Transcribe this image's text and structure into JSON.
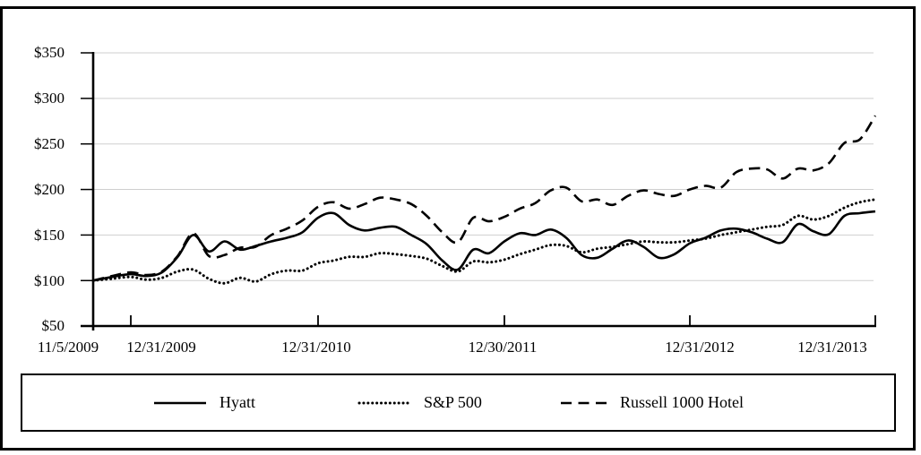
{
  "chart_data": {
    "type": "line",
    "title": "",
    "grid": "horizontal",
    "legend_position": "bottom-box",
    "line_color": "#000000",
    "grid_color": "#cfcfcf",
    "background_color": "#ffffff",
    "y_axis": {
      "min": 50,
      "max": 350,
      "step": 50,
      "labels": [
        "$350",
        "$300",
        "$250",
        "$200",
        "$150",
        "$100",
        "$50"
      ]
    },
    "x_axis": {
      "tick_labels": [
        "11/5/2009",
        "12/31/2009",
        "12/31/2010",
        "12/30/2011",
        "12/31/2012",
        "12/31/2013"
      ],
      "tick_point_indices": [
        0,
        2,
        14,
        26,
        38,
        50
      ],
      "n_points": 51,
      "point_frequency": "monthly from 11/5/2009 through 12/31/2013"
    },
    "series": [
      {
        "name": "Hyatt",
        "line_style": "solid",
        "values": [
          100,
          104,
          107,
          105,
          109,
          126,
          150,
          132,
          143,
          134,
          138,
          143,
          147,
          153,
          169,
          174,
          161,
          155,
          158,
          159,
          150,
          140,
          122,
          112,
          134,
          130,
          143,
          152,
          150,
          156,
          147,
          128,
          125,
          135,
          144,
          137,
          125,
          129,
          141,
          147,
          155,
          157,
          153,
          146,
          142,
          162,
          154,
          151,
          171,
          174,
          176
        ]
      },
      {
        "name": "S&P 500",
        "line_style": "dotted",
        "values": [
          100,
          102,
          104,
          101,
          103,
          110,
          112,
          102,
          97,
          103,
          99,
          107,
          111,
          111,
          119,
          122,
          126,
          126,
          130,
          129,
          127,
          124,
          116,
          110,
          121,
          120,
          123,
          129,
          134,
          139,
          138,
          131,
          135,
          137,
          140,
          143,
          142,
          142,
          144,
          146,
          150,
          153,
          156,
          159,
          161,
          171,
          167,
          171,
          180,
          186,
          189
        ]
      },
      {
        "name": "Russell 1000 Hotel",
        "line_style": "dashed",
        "values": [
          100,
          105,
          109,
          106,
          110,
          127,
          152,
          127,
          128,
          136,
          137,
          150,
          157,
          166,
          181,
          186,
          179,
          184,
          191,
          189,
          184,
          171,
          153,
          142,
          169,
          165,
          170,
          179,
          185,
          199,
          202,
          187,
          189,
          183,
          193,
          199,
          195,
          193,
          200,
          204,
          202,
          219,
          223,
          222,
          212,
          223,
          221,
          229,
          251,
          255,
          281
        ]
      }
    ]
  }
}
